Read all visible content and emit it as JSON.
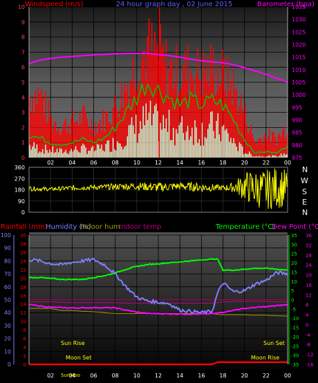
{
  "header": {
    "windspeed_label": "Windspeed (m/s)",
    "title": "24 hour graph day , 02 June 2015",
    "barometer_label": "Barometer (hpa)"
  },
  "colors": {
    "wind": "#ff0000",
    "gust": "#ff0000",
    "wind_avg": "#00c800",
    "wind_low": "#d8ffd8",
    "barometer": "#ff00ff",
    "winddir": "#ffff00",
    "temperature": "#00ff00",
    "humidity": "#8080ff",
    "dewpoint": "#ff00ff",
    "rainfall": "#ff0000",
    "indoor_hum": "#a0a000",
    "indoor_temp": "#c00080",
    "axis_text": "#ff4040"
  },
  "direction_letters": [
    "N",
    "W",
    "S",
    "E",
    "N"
  ],
  "bottom_labels": {
    "rainfall": "Rainfall (mm)",
    "humidity": "Humidity (%)",
    "indoor_hum": "Indoor hum",
    "indoor_temp": "Indoor temp",
    "temperature": "Temperature (°C)",
    "dewpoint": "Dew Point (°C)"
  },
  "sun_moon": {
    "sun_rise": "Sun Rise",
    "sun_set": "Sun Set",
    "moon_set": "Moon Set",
    "moon_rise": "Moon Rise",
    "sun_moon_marker": "SunMoo"
  },
  "chart_data": [
    {
      "type": "bar",
      "name": "wind_barometer",
      "x_ticks": [
        "02",
        "04",
        "06",
        "08",
        "10",
        "12",
        "14",
        "16",
        "18",
        "20",
        "22",
        "00"
      ],
      "ylim_wind": [
        0,
        10
      ],
      "y_ticks_wind": [
        0,
        1,
        2,
        3,
        4,
        5,
        6,
        7,
        8,
        9,
        10
      ],
      "ylim_baro": [
        975,
        1035
      ],
      "y_ticks_baro": [
        975,
        980,
        985,
        990,
        995,
        1000,
        1005,
        1010,
        1015,
        1020,
        1025,
        1030,
        1035
      ],
      "hours": [
        0,
        1,
        2,
        3,
        4,
        5,
        6,
        7,
        8,
        9,
        10,
        11,
        12,
        13,
        14,
        15,
        16,
        17,
        18,
        19,
        20,
        21,
        22,
        23,
        24
      ],
      "gust": [
        4.8,
        5.0,
        3.0,
        2.5,
        2.8,
        3.2,
        2.5,
        3.0,
        4.0,
        5.5,
        7.5,
        8.5,
        8.0,
        7.0,
        6.5,
        7.0,
        6.5,
        7.0,
        6.5,
        5.5,
        3.5,
        1.2,
        1.8,
        1.5,
        2.5
      ],
      "wind_avg": [
        1.5,
        1.3,
        1.0,
        0.9,
        1.0,
        1.2,
        1.0,
        1.3,
        2.0,
        3.0,
        4.0,
        5.0,
        4.5,
        4.0,
        3.5,
        3.8,
        3.5,
        3.8,
        3.5,
        2.5,
        1.2,
        0.3,
        0.4,
        0.3,
        0.8
      ],
      "wind_low": [
        0.8,
        0.6,
        0.5,
        0.4,
        0.5,
        0.6,
        0.5,
        0.7,
        1.0,
        1.5,
        2.0,
        2.5,
        2.2,
        2.0,
        1.8,
        2.0,
        1.8,
        2.0,
        1.8,
        1.0,
        0.4,
        0.1,
        0.1,
        0.1,
        0.3
      ],
      "barometer": [
        1012.5,
        1013.8,
        1014.5,
        1015.0,
        1015.3,
        1015.6,
        1015.9,
        1016.1,
        1016.3,
        1016.5,
        1016.5,
        1016.5,
        1016.0,
        1015.6,
        1015.0,
        1014.2,
        1013.6,
        1013.1,
        1012.8,
        1012.0,
        1010.8,
        1009.5,
        1008.2,
        1006.6,
        1005.0
      ]
    },
    {
      "type": "scatter",
      "name": "wind_direction",
      "ylim": [
        0,
        360
      ],
      "y_ticks": [
        0,
        90,
        180,
        270,
        360
      ],
      "x_ticks": [
        "02",
        "04",
        "06",
        "08",
        "10",
        "12",
        "14",
        "16",
        "18",
        "20",
        "22",
        "00"
      ],
      "hours": [
        0,
        2,
        4,
        6,
        8,
        10,
        12,
        14,
        16,
        18,
        19,
        20,
        21,
        22,
        23,
        24
      ],
      "direction": [
        190,
        185,
        195,
        200,
        205,
        210,
        200,
        210,
        200,
        195,
        200,
        210,
        190,
        180,
        200,
        190
      ],
      "spread": [
        20,
        15,
        20,
        20,
        25,
        30,
        40,
        30,
        40,
        20,
        40,
        120,
        150,
        160,
        170,
        150
      ]
    },
    {
      "type": "line",
      "name": "temp_humidity",
      "x_ticks": [
        "02",
        "04",
        "06",
        "08",
        "10",
        "12",
        "14",
        "16",
        "18",
        "20",
        "22",
        "00"
      ],
      "hours": [
        0,
        1,
        2,
        3,
        4,
        5,
        6,
        7,
        8,
        9,
        10,
        11,
        12,
        13,
        14,
        15,
        16,
        17,
        17.5,
        18,
        19,
        20,
        21,
        22,
        23,
        24
      ],
      "ylim_humidity": [
        0,
        100
      ],
      "y_ticks_humidity": [
        0,
        10,
        20,
        30,
        40,
        50,
        60,
        70,
        80,
        90,
        100
      ],
      "ylim_rain": [
        0,
        30
      ],
      "y_ticks_rain": [
        0,
        2,
        4,
        6,
        8,
        10,
        12,
        14,
        16,
        18,
        20,
        22,
        24,
        26,
        28,
        30
      ],
      "ylim_temp": [
        -35,
        35
      ],
      "y_ticks_temp": [
        -35,
        -30,
        -25,
        -20,
        -15,
        -10,
        -5,
        0,
        5,
        10,
        15,
        20,
        25,
        30,
        35
      ],
      "ylim_dew": [
        -16,
        36
      ],
      "y_ticks_dew": [
        -16,
        -12,
        -8,
        -4,
        0,
        4,
        8,
        12,
        16,
        20,
        24,
        28,
        32,
        36
      ],
      "humidity": [
        81,
        80,
        78,
        77,
        79,
        80,
        81,
        77,
        70,
        60,
        52,
        49,
        48,
        47,
        42,
        41,
        40,
        41,
        55,
        63,
        56,
        57,
        62,
        65,
        71,
        70
      ],
      "temperature": [
        12,
        12,
        11.5,
        11,
        11,
        11,
        12,
        13,
        14.5,
        16.5,
        18,
        19,
        19.5,
        20,
        20.5,
        21,
        21.5,
        22,
        22,
        16,
        16,
        16.5,
        17,
        17,
        16.5,
        16
      ],
      "dewpoint": [
        8,
        7.5,
        7,
        6.8,
        6.7,
        6.7,
        6.8,
        6.8,
        6.7,
        5.8,
        5.0,
        4.5,
        4.4,
        4.3,
        4.3,
        4.2,
        4.2,
        4.4,
        4.6,
        5.0,
        5.8,
        6.5,
        6.9,
        7.2,
        7.6,
        8.0
      ],
      "indoor_hum": [
        13,
        13,
        13,
        12.5,
        12.5,
        12.3,
        12.2,
        12.0,
        11.8,
        11.8,
        11.8,
        11.8,
        11.8,
        11.8,
        11.8,
        11.8,
        11.8,
        11.8,
        11.6,
        11.5,
        11.5,
        11.5,
        11.4,
        11.4,
        11.3,
        11.2
      ],
      "indoor_temp": [
        14.5,
        14.5,
        14.5,
        14.4,
        14.3,
        14.3,
        14.3,
        14.3,
        14.3,
        14.2,
        14.2,
        14.2,
        14.2,
        14.2,
        14.2,
        14.2,
        14.2,
        14.2,
        14.3,
        14.5,
        14.6,
        14.6,
        14.6,
        14.6,
        14.5,
        14.5
      ],
      "rainfall": [
        0,
        0,
        0,
        0,
        0,
        0,
        0,
        0,
        0,
        0,
        0,
        0,
        0,
        0,
        0,
        0,
        0,
        0,
        0.5,
        0.5,
        0.5,
        0.5,
        0.5,
        0.5,
        0.5,
        0.5
      ]
    }
  ]
}
